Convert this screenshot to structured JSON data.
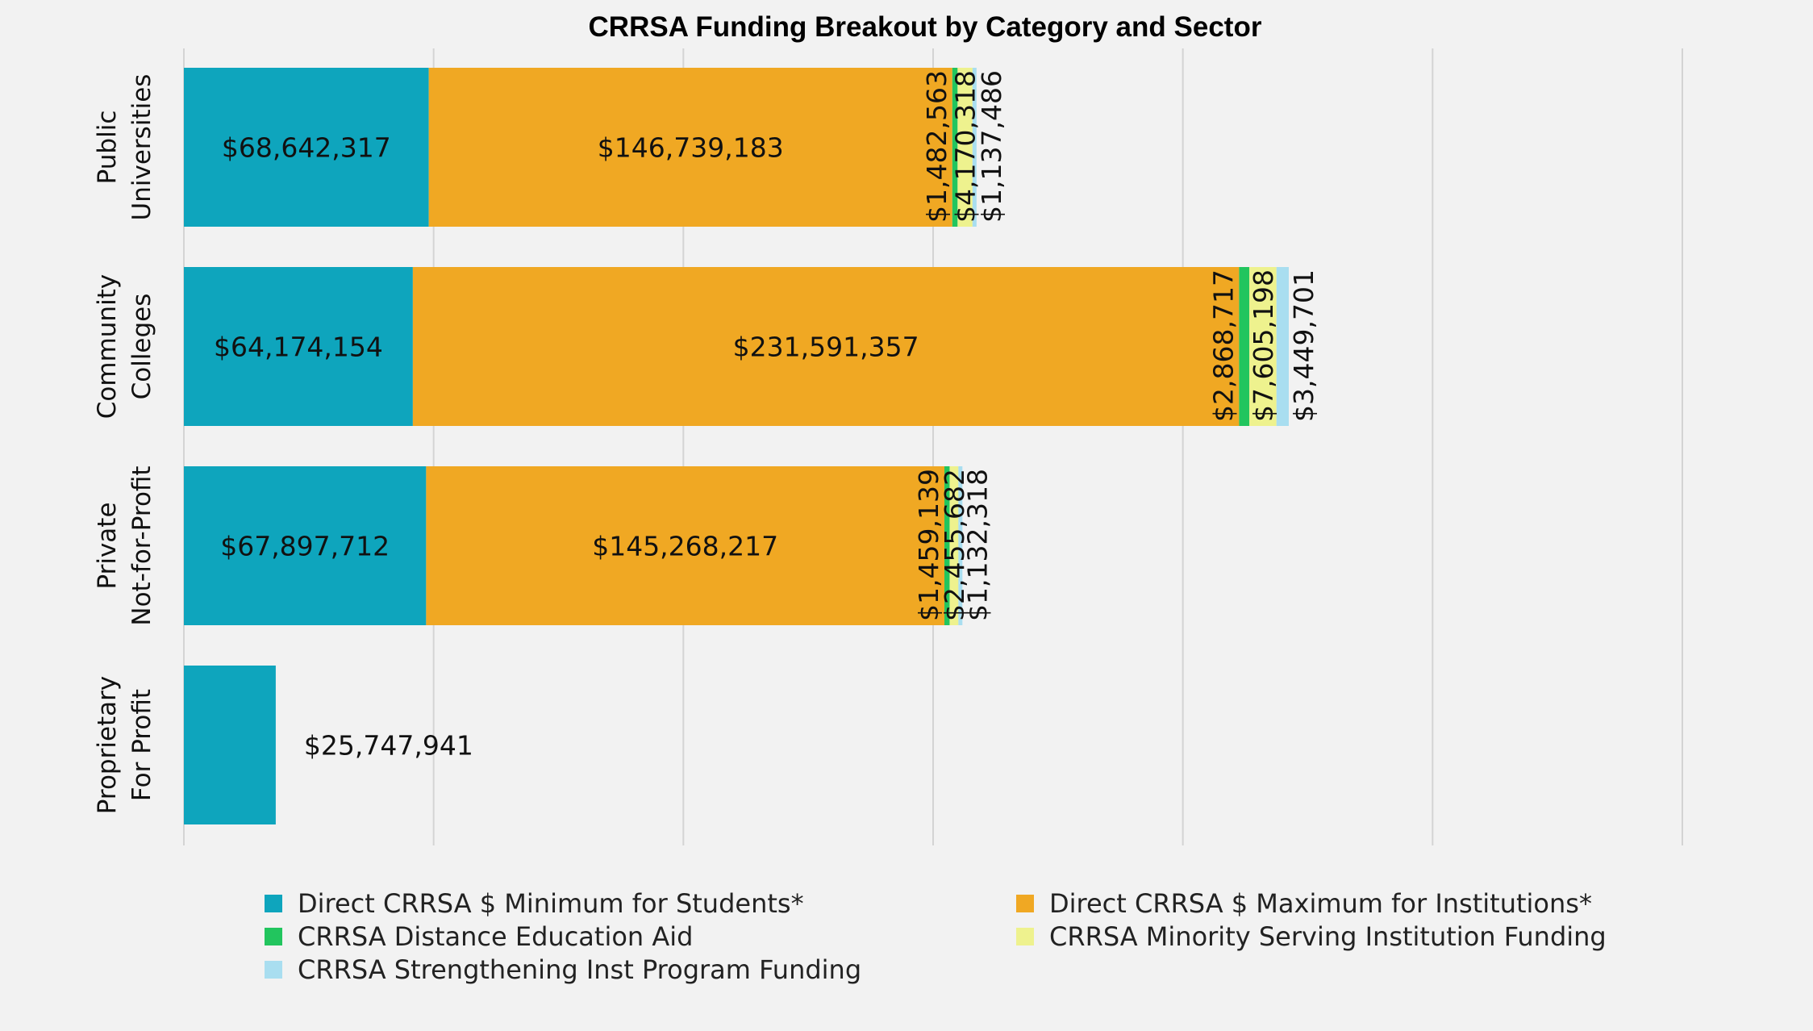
{
  "chart_data": {
    "type": "bar",
    "orientation": "horizontal",
    "stacked": true,
    "title": "CRRSA Funding Breakout by Category and Sector",
    "xlabel": "",
    "ylabel": "",
    "xlim": [
      0,
      420000000
    ],
    "grid": true,
    "legend_position": "bottom",
    "categories": [
      [
        "Public",
        "Universities"
      ],
      [
        "Community",
        "Colleges"
      ],
      [
        "Private",
        "Not-for-Profit"
      ],
      [
        "Proprietary",
        "For Profit"
      ]
    ],
    "series": [
      {
        "name": "Direct CRRSA $ Minimum for Students*",
        "color": "#0ea5bd",
        "values": [
          68642317,
          64174154,
          67897712,
          25747941
        ],
        "labels": [
          "$68,642,317",
          "$64,174,154",
          "$67,897,712",
          "$25,747,941"
        ]
      },
      {
        "name": "Direct CRRSA $ Maximum for Institutions*",
        "color": "#f0a823",
        "values": [
          146739183,
          231591357,
          145268217,
          0
        ],
        "labels": [
          "$146,739,183",
          "$231,591,357",
          "$145,268,217",
          ""
        ]
      },
      {
        "name": "CRRSA Distance Education Aid",
        "color": "#22c55e",
        "values": [
          1482563,
          2868717,
          1459139,
          0
        ],
        "labels": [
          "$1,482,563",
          "$2,868,717",
          "$1,459,139",
          ""
        ]
      },
      {
        "name": "CRRSA Minority Serving Institution Funding",
        "color": "#eef28e",
        "values": [
          4170318,
          7605198,
          2455682,
          0
        ],
        "labels": [
          "$4,170,318",
          "$7,605,198",
          "$2,455,682",
          ""
        ]
      },
      {
        "name": "CRRSA Strengthening Inst Program Funding",
        "color": "#a9def0",
        "values": [
          1137486,
          3449701,
          1132318,
          0
        ],
        "labels": [
          "$1,137,486",
          "$3,449,701",
          "$1,132,318",
          ""
        ]
      }
    ]
  }
}
